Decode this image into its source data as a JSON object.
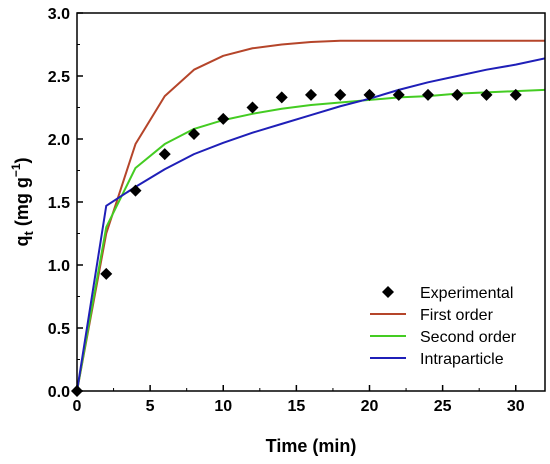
{
  "chart_data": {
    "type": "scatter",
    "title": "",
    "xlabel": "Time (min)",
    "ylabel": {
      "base": "q",
      "sub": "t",
      "unit_open": " (mg g",
      "sup": "−1",
      "unit_close": ")"
    },
    "xlim": [
      0,
      32
    ],
    "ylim": [
      0,
      3.0
    ],
    "x_ticks": [
      0,
      5,
      10,
      15,
      20,
      25,
      30
    ],
    "y_ticks": [
      "0.0",
      "0.5",
      "1.0",
      "1.5",
      "2.0",
      "2.5",
      "3.0"
    ],
    "grid": false,
    "legend_position": "bottom-right",
    "series": [
      {
        "name": "Experimental",
        "kind": "scatter",
        "marker": "diamond",
        "color": "#000000",
        "x": [
          0,
          2,
          4,
          6,
          8,
          10,
          12,
          14,
          16,
          18,
          20,
          22,
          24,
          26,
          28,
          30
        ],
        "y": [
          0.0,
          0.93,
          1.59,
          1.88,
          2.04,
          2.16,
          2.25,
          2.33,
          2.35,
          2.35,
          2.35,
          2.35,
          2.35,
          2.35,
          2.35,
          2.35
        ]
      },
      {
        "name": "First order",
        "kind": "line",
        "color": "#b5452a",
        "x": [
          0,
          2,
          4,
          6,
          8,
          10,
          12,
          14,
          16,
          18,
          20,
          22,
          24,
          26,
          28,
          30,
          32
        ],
        "y": [
          0.0,
          1.25,
          1.96,
          2.34,
          2.55,
          2.66,
          2.72,
          2.75,
          2.77,
          2.78,
          2.78,
          2.78,
          2.78,
          2.78,
          2.78,
          2.78,
          2.78
        ]
      },
      {
        "name": "Second order",
        "kind": "line",
        "color": "#44cc22",
        "x": [
          0,
          2,
          4,
          6,
          8,
          10,
          12,
          14,
          16,
          18,
          20,
          22,
          24,
          26,
          28,
          30,
          32
        ],
        "y": [
          0.0,
          1.3,
          1.77,
          1.96,
          2.08,
          2.15,
          2.2,
          2.24,
          2.27,
          2.29,
          2.31,
          2.33,
          2.34,
          2.36,
          2.37,
          2.38,
          2.39
        ]
      },
      {
        "name": "Intraparticle",
        "kind": "line",
        "color": "#1f1fb8",
        "x": [
          0,
          2,
          4,
          6,
          8,
          10,
          12,
          14,
          16,
          18,
          20,
          22,
          24,
          26,
          28,
          30,
          32
        ],
        "y": [
          0.0,
          1.47,
          1.62,
          1.76,
          1.88,
          1.97,
          2.05,
          2.12,
          2.19,
          2.26,
          2.32,
          2.39,
          2.45,
          2.5,
          2.55,
          2.59,
          2.64
        ]
      }
    ]
  }
}
